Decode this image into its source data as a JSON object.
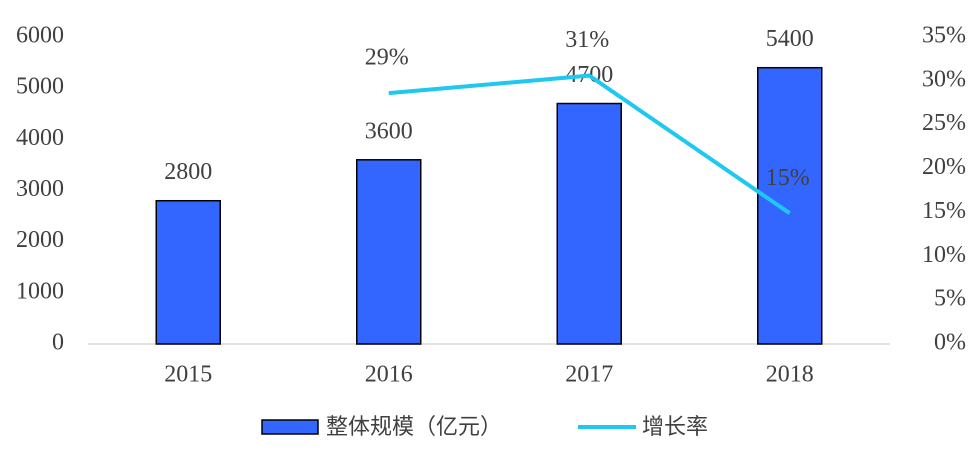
{
  "chart_data": {
    "type": "bar-line",
    "categories": [
      "2015",
      "2016",
      "2017",
      "2018"
    ],
    "series": [
      {
        "name": "整体规模（亿元）",
        "type": "bar",
        "color": "#3366ff",
        "values": [
          2800,
          3600,
          4700,
          5400
        ]
      },
      {
        "name": "增长率",
        "type": "line",
        "axis": "y2",
        "color": "#1ec8f0",
        "values": [
          null,
          28.6,
          30.6,
          14.9
        ],
        "value_labels": [
          null,
          "29%",
          "31%",
          "15%"
        ]
      }
    ],
    "ylim": [
      0,
      6000
    ],
    "yticks": [
      0,
      1000,
      2000,
      3000,
      4000,
      5000,
      6000
    ],
    "y2lim": [
      0,
      35
    ],
    "y2ticks": [
      {
        "value": 0,
        "label": "0%"
      },
      {
        "value": 5,
        "label": "5%"
      },
      {
        "value": 10,
        "label": "10%"
      },
      {
        "value": 15,
        "label": "15%"
      },
      {
        "value": 20,
        "label": "20%"
      },
      {
        "value": 25,
        "label": "25%"
      },
      {
        "value": 30,
        "label": "30%"
      },
      {
        "value": 35,
        "label": "35%"
      }
    ],
    "grid": false,
    "legend": "bottom"
  }
}
